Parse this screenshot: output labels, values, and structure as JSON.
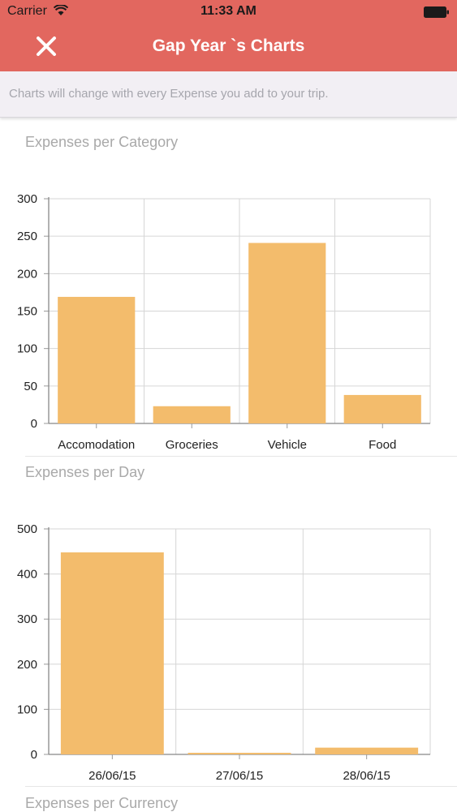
{
  "status_bar": {
    "carrier": "Carrier",
    "time": "11:33 AM"
  },
  "nav": {
    "title": "Gap Year `s Charts"
  },
  "banner": {
    "text": "Charts will change with every Expense you add to your trip."
  },
  "sections": {
    "category_title": "Expenses per Category",
    "day_title": "Expenses per Day",
    "currency_title": "Expenses per Currency"
  },
  "colors": {
    "header": "#e2675f",
    "bar": "#f3bc6c",
    "grid": "#d6d6d6"
  },
  "chart_data": [
    {
      "type": "bar",
      "title": "Expenses per Category",
      "categories": [
        "Accomodation",
        "Groceries",
        "Vehicle",
        "Food"
      ],
      "values": [
        169,
        23,
        241,
        38
      ],
      "ylim": [
        0,
        300
      ],
      "yticks": [
        0,
        50,
        100,
        150,
        200,
        250,
        300
      ],
      "grid": true
    },
    {
      "type": "bar",
      "title": "Expenses per Day",
      "categories": [
        "26/06/15",
        "27/06/15",
        "28/06/15"
      ],
      "values": [
        448,
        2,
        15
      ],
      "ylim": [
        0,
        500
      ],
      "yticks": [
        0,
        100,
        200,
        300,
        400,
        500
      ],
      "grid": true
    }
  ]
}
